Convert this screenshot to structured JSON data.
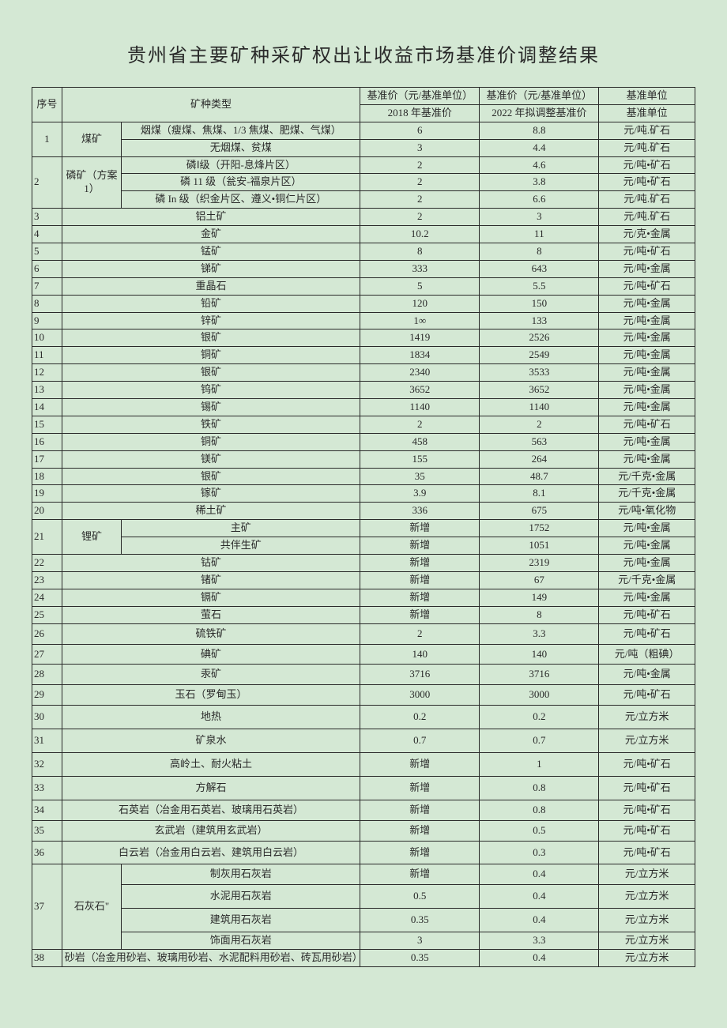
{
  "title": "贵州省主要矿种采矿权出让收益市场基准价调整结果",
  "headers": {
    "seq": "序号",
    "mineral_type": "矿种类型",
    "price_2018_group": "基准价（元/基准单位）",
    "price_2022_group": "基准价（元/基准单位）",
    "unit_group": "基准单位",
    "price_2018": "2018 年基准价",
    "price_2022": "2022 年拟调整基准价",
    "unit": "基准单位"
  },
  "rows": {
    "r1a": {
      "seq": "1",
      "cat": "煤矿",
      "type": "烟煤（瘦煤、焦煤、1/3 焦煤、肥煤、气煤）",
      "p2018": "6",
      "p2022": "8.8",
      "unit": "元/吨.矿石"
    },
    "r1b": {
      "type": "无烟煤、贫煤",
      "p2018": "3",
      "p2022": "4.4",
      "unit": "元/吨.矿石"
    },
    "r2a": {
      "seq": "2",
      "cat": "磷矿（方案 1）",
      "type": "磷Ⅰ级（开阳-息烽片区）",
      "p2018": "2",
      "p2022": "4.6",
      "unit": "元/吨•矿石"
    },
    "r2b": {
      "type": "磷 11 级（瓮安-福泉片区）",
      "p2018": "2",
      "p2022": "3.8",
      "unit": "元/吨•矿石"
    },
    "r2c": {
      "type": "磷 In 级（织金片区、遵义•铜仁片区）",
      "p2018": "2",
      "p2022": "6.6",
      "unit": "元/吨.矿石"
    },
    "r3": {
      "seq": "3",
      "type": "铝土矿",
      "p2018": "2",
      "p2022": "3",
      "unit": "元/吨.矿石"
    },
    "r4": {
      "seq": "4",
      "type": "金矿",
      "p2018": "10.2",
      "p2022": "11",
      "unit": "元/克•金属"
    },
    "r5": {
      "seq": "5",
      "type": "锰矿",
      "p2018": "8",
      "p2022": "8",
      "unit": "元/吨•矿石"
    },
    "r6": {
      "seq": "6",
      "type": "锑矿",
      "p2018": "333",
      "p2022": "643",
      "unit": "元/吨•金属"
    },
    "r7": {
      "seq": "7",
      "type": "重晶石",
      "p2018": "5",
      "p2022": "5.5",
      "unit": "元/吨•矿石"
    },
    "r8": {
      "seq": "8",
      "type": "铅矿",
      "p2018": "120",
      "p2022": "150",
      "unit": "元/吨•金属"
    },
    "r9": {
      "seq": "9",
      "type": "锌矿",
      "p2018": "1∞",
      "p2022": "133",
      "unit": "元/吨•金属"
    },
    "r10": {
      "seq": "10",
      "type": "银矿",
      "p2018": "1419",
      "p2022": "2526",
      "unit": "元/吨•金属"
    },
    "r11": {
      "seq": "11",
      "type": "铜矿",
      "p2018": "1834",
      "p2022": "2549",
      "unit": "元/吨•金属"
    },
    "r12": {
      "seq": "12",
      "type": "银矿",
      "p2018": "2340",
      "p2022": "3533",
      "unit": "元/吨•金属"
    },
    "r13": {
      "seq": "13",
      "type": "钨矿",
      "p2018": "3652",
      "p2022": "3652",
      "unit": "元/吨•金属"
    },
    "r14": {
      "seq": "14",
      "type": "锡矿",
      "p2018": "1140",
      "p2022": "1140",
      "unit": "元/吨•金属"
    },
    "r15": {
      "seq": "15",
      "type": "铁矿",
      "p2018": "2",
      "p2022": "2",
      "unit": "元/吨•矿石"
    },
    "r16": {
      "seq": "16",
      "type": "铜矿",
      "p2018": "458",
      "p2022": "563",
      "unit": "元/吨•金属"
    },
    "r17": {
      "seq": "17",
      "type": "镁矿",
      "p2018": "155",
      "p2022": "264",
      "unit": "元/吨•金属"
    },
    "r18": {
      "seq": "18",
      "type": "银矿",
      "p2018": "35",
      "p2022": "48.7",
      "unit": "元/千克•金属"
    },
    "r19": {
      "seq": "19",
      "type": "镓矿",
      "p2018": "3.9",
      "p2022": "8.1",
      "unit": "元/千克•金属"
    },
    "r20": {
      "seq": "20",
      "type": "稀土矿",
      "p2018": "336",
      "p2022": "675",
      "unit": "元/吨•氧化物"
    },
    "r21a": {
      "seq": "21",
      "cat": "锂矿",
      "type": "主矿",
      "p2018": "新增",
      "p2022": "1752",
      "unit": "元/吨•金属"
    },
    "r21b": {
      "type": "共伴生矿",
      "p2018": "新增",
      "p2022": "1051",
      "unit": "元/吨•金属"
    },
    "r22": {
      "seq": "22",
      "type": "钴矿",
      "p2018": "新增",
      "p2022": "2319",
      "unit": "元/吨•金属"
    },
    "r23": {
      "seq": "23",
      "type": "锗矿",
      "p2018": "新增",
      "p2022": "67",
      "unit": "元/千克•金属"
    },
    "r24": {
      "seq": "24",
      "type": "镉矿",
      "p2018": "新增",
      "p2022": "149",
      "unit": "元/吨•金属"
    },
    "r25": {
      "seq": "25",
      "type": "萤石",
      "p2018": "新增",
      "p2022": "8",
      "unit": "元/吨•矿石"
    },
    "r26": {
      "seq": "26",
      "type": "硫铁矿",
      "p2018": "2",
      "p2022": "3.3",
      "unit": "元/吨•矿石"
    },
    "r27": {
      "seq": "27",
      "type": "碘矿",
      "p2018": "140",
      "p2022": "140",
      "unit": "元/吨（粗碘）"
    },
    "r28": {
      "seq": "28",
      "type": "汞矿",
      "p2018": "3716",
      "p2022": "3716",
      "unit": "元/吨•金属"
    },
    "r29": {
      "seq": "29",
      "type": "玉石（罗甸玉）",
      "p2018": "3000",
      "p2022": "3000",
      "unit": "元/吨•矿石"
    },
    "r30": {
      "seq": "30",
      "type": "地热",
      "p2018": "0.2",
      "p2022": "0.2",
      "unit": "元/立方米"
    },
    "r31": {
      "seq": "31",
      "type": "矿泉水",
      "p2018": "0.7",
      "p2022": "0.7",
      "unit": "元/立方米"
    },
    "r32": {
      "seq": "32",
      "type": "高岭土、耐火粘土",
      "p2018": "新增",
      "p2022": "1",
      "unit": "元/吨•矿石"
    },
    "r33": {
      "seq": "33",
      "type": "方解石",
      "p2018": "新增",
      "p2022": "0.8",
      "unit": "元/吨•矿石"
    },
    "r34": {
      "seq": "34",
      "type": "石英岩（冶金用石英岩、玻璃用石英岩）",
      "p2018": "新增",
      "p2022": "0.8",
      "unit": "元/吨•矿石"
    },
    "r35": {
      "seq": "35",
      "type": "玄武岩（建筑用玄武岩）",
      "p2018": "新增",
      "p2022": "0.5",
      "unit": "元/吨•矿石"
    },
    "r36": {
      "seq": "36",
      "type": "白云岩（冶金用白云岩、建筑用白云岩）",
      "p2018": "新增",
      "p2022": "0.3",
      "unit": "元/吨•矿石"
    },
    "r37a": {
      "seq": "37",
      "cat": "石灰石\"",
      "type": "制灰用石灰岩",
      "p2018": "新增",
      "p2022": "0.4",
      "unit": "元/立方米"
    },
    "r37b": {
      "type": "水泥用石灰岩",
      "p2018": "0.5",
      "p2022": "0.4",
      "unit": "元/立方米"
    },
    "r37c": {
      "type": "建筑用石灰岩",
      "p2018": "0.35",
      "p2022": "0.4",
      "unit": "元/立方米"
    },
    "r37d": {
      "type": "饰面用石灰岩",
      "p2018": "3",
      "p2022": "3.3",
      "unit": "元/立方米"
    },
    "r38": {
      "seq": "38",
      "type": "砂岩（冶金用砂岩、玻璃用砂岩、水泥配料用砂岩、砖瓦用砂岩）",
      "p2018": "0.35",
      "p2022": "0.4",
      "unit": "元/立方米"
    }
  },
  "style": {
    "background_color": "#d4e8d4",
    "border_color": "#2a2a2a",
    "text_color": "#2a2a2a",
    "title_fontsize": 24,
    "body_fontsize": 13,
    "font_family": "SimSun"
  }
}
